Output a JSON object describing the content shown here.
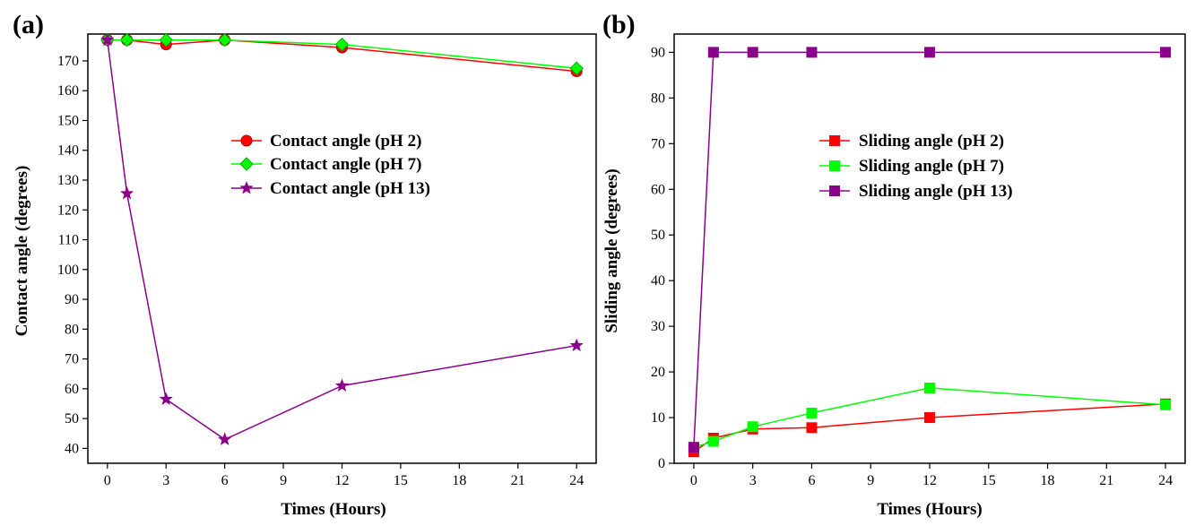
{
  "chart_data": [
    {
      "type": "line",
      "panel_label": "(a)",
      "xlabel": "Times (Hours)",
      "ylabel": "Contact angle (degrees)",
      "xlim": [
        -1,
        25
      ],
      "ylim": [
        35,
        179
      ],
      "xticks": [
        0,
        3,
        6,
        9,
        12,
        15,
        18,
        21,
        24
      ],
      "yticks": [
        40,
        50,
        60,
        70,
        80,
        90,
        100,
        110,
        120,
        130,
        140,
        150,
        160,
        170
      ],
      "legend_position": "center",
      "series": [
        {
          "name": "Contact angle (pH 2)",
          "color": "#ff0000",
          "marker": "circle",
          "x": [
            0,
            1,
            3,
            6,
            12,
            24
          ],
          "y": [
            177,
            177,
            175.5,
            177,
            174.5,
            166.5
          ]
        },
        {
          "name": "Contact angle (pH 7)",
          "color": "#00ff00",
          "marker": "diamond",
          "x": [
            0,
            1,
            3,
            6,
            12,
            24
          ],
          "y": [
            177,
            177,
            177,
            177,
            175.5,
            167.5
          ]
        },
        {
          "name": "Contact angle (pH 13)",
          "color": "#8b008b",
          "marker": "star",
          "x": [
            0,
            1,
            3,
            6,
            12,
            24
          ],
          "y": [
            177,
            125.5,
            56.5,
            43,
            61,
            74.5
          ]
        }
      ]
    },
    {
      "type": "line",
      "panel_label": "(b)",
      "xlabel": "Times (Hours)",
      "ylabel": "Sliding angle (degrees)",
      "xlim": [
        -1,
        25
      ],
      "ylim": [
        0,
        94
      ],
      "xticks": [
        0,
        3,
        6,
        9,
        12,
        15,
        18,
        21,
        24
      ],
      "yticks": [
        0,
        10,
        20,
        30,
        40,
        50,
        60,
        70,
        80,
        90
      ],
      "legend_position": "center-top",
      "series": [
        {
          "name": "Sliding angle (pH 2)",
          "color": "#ff0000",
          "marker": "square",
          "x": [
            0,
            1,
            3,
            6,
            12,
            24
          ],
          "y": [
            2.5,
            5.5,
            7.5,
            7.8,
            10,
            13
          ]
        },
        {
          "name": "Sliding angle (pH 7)",
          "color": "#00ff00",
          "marker": "square",
          "x": [
            0,
            1,
            3,
            6,
            12,
            24
          ],
          "y": [
            3.5,
            4.8,
            8,
            11,
            16.5,
            12.8
          ]
        },
        {
          "name": "Sliding angle (pH 13)",
          "color": "#8b008b",
          "marker": "square",
          "x": [
            0,
            1,
            3,
            6,
            12,
            24
          ],
          "y": [
            3.5,
            90,
            90,
            90,
            90,
            90
          ]
        }
      ]
    }
  ]
}
